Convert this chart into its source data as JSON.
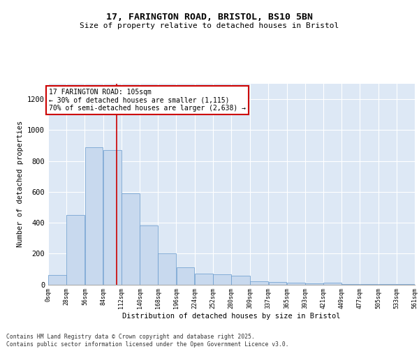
{
  "title_line1": "17, FARINGTON ROAD, BRISTOL, BS10 5BN",
  "title_line2": "Size of property relative to detached houses in Bristol",
  "xlabel": "Distribution of detached houses by size in Bristol",
  "ylabel": "Number of detached properties",
  "bar_color": "#c8d9ee",
  "bar_edge_color": "#6699cc",
  "bg_color": "#dde8f5",
  "grid_color": "#ffffff",
  "vline_color": "#cc0000",
  "vline_x": 105,
  "annotation_text": "17 FARINGTON ROAD: 105sqm\n← 30% of detached houses are smaller (1,115)\n70% of semi-detached houses are larger (2,638) →",
  "footer": "Contains HM Land Registry data © Crown copyright and database right 2025.\nContains public sector information licensed under the Open Government Licence v3.0.",
  "bin_edges": [
    0,
    28,
    56,
    84,
    112,
    140,
    168,
    196,
    224,
    252,
    280,
    309,
    337,
    365,
    393,
    421,
    449,
    477,
    505,
    533,
    561
  ],
  "bar_heights": [
    60,
    450,
    890,
    870,
    590,
    380,
    200,
    110,
    70,
    65,
    55,
    20,
    15,
    10,
    5,
    10,
    2,
    2,
    2,
    2
  ],
  "ylim": [
    0,
    1300
  ],
  "yticks": [
    0,
    200,
    400,
    600,
    800,
    1000,
    1200
  ]
}
